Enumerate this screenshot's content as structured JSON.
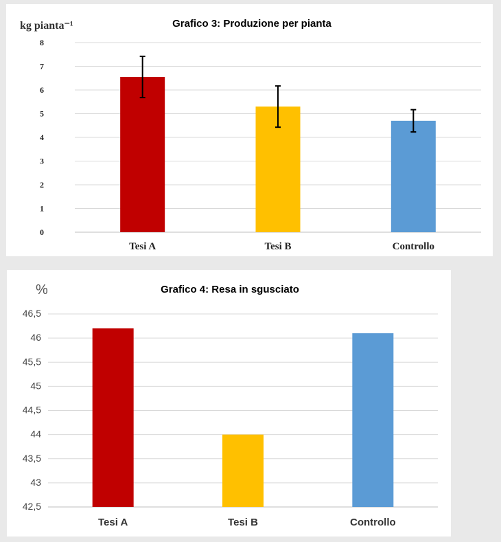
{
  "chart_data": [
    {
      "type": "bar",
      "title": "Grafico 3: Produzione per pianta",
      "ylabel": "kg pianta⁻¹",
      "categories": [
        "Tesi A",
        "Tesi B",
        "Controllo"
      ],
      "values": [
        6.55,
        5.3,
        4.7
      ],
      "error_bars": [
        0.87,
        0.87,
        0.47
      ],
      "colors": [
        "#C00000",
        "#FFC000",
        "#5B9BD5"
      ],
      "ylim": [
        0,
        8
      ],
      "yticks": [
        "0",
        "1",
        "2",
        "3",
        "4",
        "5",
        "6",
        "7",
        "8"
      ],
      "grid": true,
      "legend": "none"
    },
    {
      "type": "bar",
      "title": "Grafico 4: Resa in sgusciato",
      "ylabel": "%",
      "categories": [
        "Tesi A",
        "Tesi B",
        "Controllo"
      ],
      "values": [
        46.2,
        44.0,
        46.1
      ],
      "colors": [
        "#C00000",
        "#FFC000",
        "#5B9BD5"
      ],
      "ylim": [
        42.5,
        46.5
      ],
      "yticks": [
        "42,5",
        "43",
        "43,5",
        "44",
        "44,5",
        "45",
        "45,5",
        "46",
        "46,5"
      ],
      "grid": true,
      "legend": "none"
    }
  ]
}
